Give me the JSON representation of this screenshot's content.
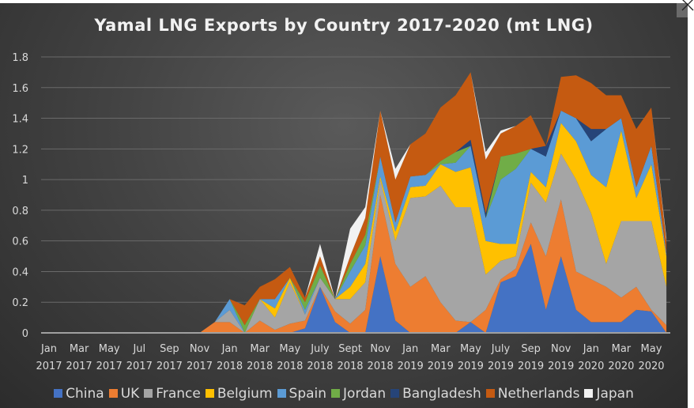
{
  "chart_data": {
    "type": "area",
    "stacked": true,
    "title": "Yamal LNG Exports by Country 2017-2020 (mt LNG)",
    "xlabel": "",
    "ylabel": "",
    "ylim": [
      0,
      1.8
    ],
    "yticks": [
      "0",
      "0.2",
      "0.4",
      "0.6",
      "0.8",
      "1",
      "1.2",
      "1.4",
      "1.6",
      "1.8"
    ],
    "ytick_values": [
      0,
      0.2,
      0.4,
      0.6,
      0.8,
      1.0,
      1.2,
      1.4,
      1.6,
      1.8
    ],
    "grid": true,
    "legend_position": "bottom",
    "x": [
      "Jan 2017",
      "Feb 2017",
      "Mar 2017",
      "Apr 2017",
      "May 2017",
      "Jun 2017",
      "Jul 2017",
      "Aug 2017",
      "Sep 2017",
      "Oct 2017",
      "Nov 2017",
      "Dec 2017",
      "Jan 2018",
      "Feb 2018",
      "Mar 2018",
      "Apr 2018",
      "May 2018",
      "Jun 2018",
      "Jul 2018",
      "Aug 2018",
      "Sep 2018",
      "Oct 2018",
      "Nov 2018",
      "Dec 2018",
      "Jan 2019",
      "Feb 2019",
      "Mar 2019",
      "Apr 2019",
      "May 2019",
      "Jun 2019",
      "Jul 2019",
      "Aug 2019",
      "Sep 2019",
      "Oct 2019",
      "Nov 2019",
      "Dec 2019",
      "Jan 2020",
      "Feb 2020",
      "Mar 2020",
      "Apr 2020",
      "May 2020",
      "Jun 2020"
    ],
    "xtick_labels": [
      {
        "month": "Jan",
        "year": "2017"
      },
      {
        "month": "Mar",
        "year": "2017"
      },
      {
        "month": "May",
        "year": "2017"
      },
      {
        "month": "Jul",
        "year": "2017"
      },
      {
        "month": "Sep",
        "year": "2017"
      },
      {
        "month": "Nov",
        "year": "2017"
      },
      {
        "month": "Jan",
        "year": "2018"
      },
      {
        "month": "Mar",
        "year": "2018"
      },
      {
        "month": "May",
        "year": "2018"
      },
      {
        "month": "July",
        "year": "2018"
      },
      {
        "month": "Sept",
        "year": "2018"
      },
      {
        "month": "Nov",
        "year": "2018"
      },
      {
        "month": "Jan",
        "year": "2019"
      },
      {
        "month": "Mar",
        "year": "2019"
      },
      {
        "month": "May",
        "year": "2019"
      },
      {
        "month": "July",
        "year": "2019"
      },
      {
        "month": "Sep",
        "year": "2019"
      },
      {
        "month": "Nov",
        "year": "2019"
      },
      {
        "month": "Jan",
        "year": "2020"
      },
      {
        "month": "Mar",
        "year": "2020"
      },
      {
        "month": "May",
        "year": "2020"
      }
    ],
    "series": [
      {
        "name": "China",
        "color": "#4472c4",
        "values": [
          0,
          0,
          0,
          0,
          0,
          0,
          0,
          0,
          0,
          0,
          0,
          0,
          0,
          0,
          0,
          0,
          0,
          0.03,
          0.3,
          0.07,
          0,
          0,
          0.5,
          0.08,
          0,
          0,
          0,
          0,
          0.07,
          0,
          0.33,
          0.37,
          0.58,
          0.15,
          0.5,
          0.15,
          0.07,
          0.07,
          0.07,
          0.15,
          0.14,
          0
        ]
      },
      {
        "name": "UK",
        "color": "#ed7d31",
        "values": [
          0,
          0,
          0,
          0,
          0,
          0,
          0,
          0,
          0,
          0,
          0,
          0.07,
          0.07,
          0,
          0.08,
          0.02,
          0.06,
          0.05,
          0,
          0.07,
          0.06,
          0.15,
          0.4,
          0.37,
          0.3,
          0.37,
          0.2,
          0.08,
          0,
          0.15,
          0.02,
          0.05,
          0.14,
          0.35,
          0.37,
          0.25,
          0.28,
          0.23,
          0.16,
          0.15,
          0.01,
          0.05
        ]
      },
      {
        "name": "France",
        "color": "#a5a5a5",
        "values": [
          0,
          0,
          0,
          0,
          0,
          0,
          0,
          0,
          0,
          0,
          0,
          0,
          0.08,
          0,
          0.14,
          0.08,
          0.27,
          0.04,
          0.06,
          0.08,
          0.16,
          0.18,
          0.1,
          0.15,
          0.58,
          0.52,
          0.76,
          0.74,
          0.75,
          0.23,
          0.12,
          0.08,
          0.26,
          0.35,
          0.3,
          0.6,
          0.43,
          0.15,
          0.5,
          0.43,
          0.58,
          0.25
        ]
      },
      {
        "name": "Belgium",
        "color": "#ffc000",
        "values": [
          0,
          0,
          0,
          0,
          0,
          0,
          0,
          0,
          0,
          0,
          0,
          0,
          0,
          0,
          0,
          0.06,
          0.03,
          0,
          0,
          0,
          0.08,
          0.12,
          0.02,
          0.06,
          0.07,
          0.07,
          0.14,
          0.23,
          0.26,
          0.22,
          0.11,
          0.08,
          0.07,
          0.1,
          0.2,
          0.25,
          0.25,
          0.5,
          0.59,
          0.15,
          0.37,
          0.2
        ]
      },
      {
        "name": "Spain",
        "color": "#5b9bd5",
        "values": [
          0,
          0,
          0,
          0,
          0,
          0,
          0,
          0,
          0,
          0,
          0,
          0,
          0.07,
          0,
          0,
          0.06,
          0,
          0.03,
          0,
          0,
          0.1,
          0.12,
          0.13,
          0.06,
          0.07,
          0.07,
          0,
          0.06,
          0.14,
          0.15,
          0.42,
          0.49,
          0.15,
          0.2,
          0.08,
          0.15,
          0.22,
          0.38,
          0.08,
          0.07,
          0.12,
          0.02
        ]
      },
      {
        "name": "Jordan",
        "color": "#70ad47",
        "values": [
          0,
          0,
          0,
          0,
          0,
          0,
          0,
          0,
          0,
          0,
          0,
          0,
          0,
          0.05,
          0,
          0,
          0,
          0.05,
          0.08,
          0,
          0.05,
          0.07,
          0,
          0,
          0,
          0,
          0.02,
          0.07,
          0,
          0,
          0.15,
          0.1,
          0,
          0,
          0,
          0,
          0,
          0,
          0,
          0,
          0,
          0
        ]
      },
      {
        "name": "Bangladesh",
        "color": "#264478",
        "values": [
          0,
          0,
          0,
          0,
          0,
          0,
          0,
          0,
          0,
          0,
          0,
          0,
          0,
          0,
          0,
          0,
          0,
          0,
          0,
          0,
          0,
          0,
          0,
          0,
          0,
          0,
          0,
          0,
          0.04,
          0.03,
          0,
          0,
          0,
          0.07,
          0,
          0,
          0.08,
          0,
          0,
          0,
          0,
          0
        ]
      },
      {
        "name": "Netherlands",
        "color": "#c55a11",
        "values": [
          0,
          0,
          0,
          0,
          0,
          0,
          0,
          0,
          0,
          0,
          0,
          0,
          0,
          0.13,
          0.08,
          0.13,
          0.07,
          0.03,
          0.06,
          0,
          0.05,
          0.11,
          0.3,
          0.28,
          0.21,
          0.27,
          0.35,
          0.37,
          0.44,
          0.35,
          0.15,
          0.18,
          0.22,
          0,
          0.22,
          0.28,
          0.3,
          0.22,
          0.15,
          0.38,
          0.25,
          0.08
        ]
      },
      {
        "name": "Japan",
        "color": "#f2f2f2",
        "values": [
          0,
          0,
          0,
          0,
          0,
          0,
          0,
          0,
          0,
          0,
          0,
          0,
          0,
          0,
          0,
          0,
          0,
          0,
          0.08,
          0,
          0.18,
          0.07,
          0,
          0.07,
          0,
          0,
          0,
          0,
          0,
          0.05,
          0.02,
          0,
          0,
          0,
          0,
          0,
          0,
          0,
          0,
          0,
          0,
          0.02
        ]
      }
    ]
  },
  "window": {
    "close_icon": "close-icon"
  }
}
